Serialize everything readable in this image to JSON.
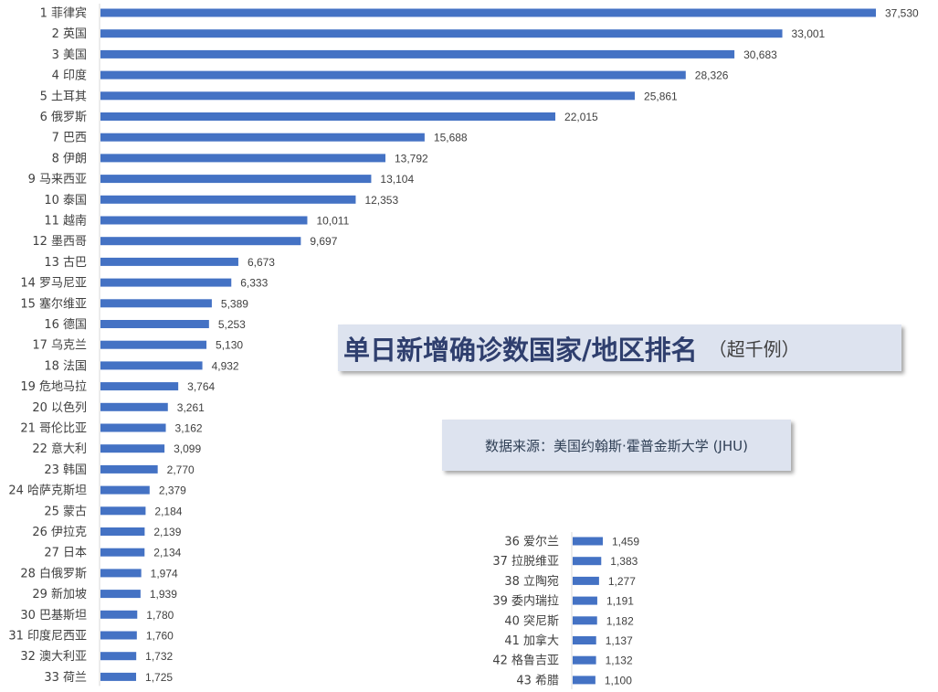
{
  "chart_data": {
    "type": "bar",
    "orientation": "horizontal",
    "title": "单日新增确诊数国家/地区排名",
    "subtitle": "（超千例）",
    "source": "数据来源：美国约翰斯·霍普金斯大学 (JHU)",
    "bar_color": "#4472c4",
    "groups": [
      {
        "items": [
          {
            "rank": "1",
            "name": "菲律宾",
            "value": 37530,
            "label": "37,530"
          },
          {
            "rank": "2",
            "name": "英国",
            "value": 33001,
            "label": "33,001"
          },
          {
            "rank": "3",
            "name": "美国",
            "value": 30683,
            "label": "30,683"
          },
          {
            "rank": "4",
            "name": "印度",
            "value": 28326,
            "label": "28,326"
          },
          {
            "rank": "5",
            "name": "土耳其",
            "value": 25861,
            "label": "25,861"
          },
          {
            "rank": "6",
            "name": "俄罗斯",
            "value": 22015,
            "label": "22,015"
          },
          {
            "rank": "7",
            "name": "巴西",
            "value": 15688,
            "label": "15,688"
          },
          {
            "rank": "8",
            "name": "伊朗",
            "value": 13792,
            "label": "13,792"
          },
          {
            "rank": "9",
            "name": "马来西亚",
            "value": 13104,
            "label": "13,104"
          },
          {
            "rank": "10",
            "name": "泰国",
            "value": 12353,
            "label": "12,353"
          },
          {
            "rank": "11",
            "name": "越南",
            "value": 10011,
            "label": "10,011"
          },
          {
            "rank": "12",
            "name": "墨西哥",
            "value": 9697,
            "label": "9,697"
          },
          {
            "rank": "13",
            "name": "古巴",
            "value": 6673,
            "label": "6,673"
          },
          {
            "rank": "14",
            "name": "罗马尼亚",
            "value": 6333,
            "label": "6,333"
          },
          {
            "rank": "15",
            "name": "塞尔维亚",
            "value": 5389,
            "label": "5,389"
          },
          {
            "rank": "16",
            "name": "德国",
            "value": 5253,
            "label": "5,253"
          },
          {
            "rank": "17",
            "name": "乌克兰",
            "value": 5130,
            "label": "5,130"
          },
          {
            "rank": "18",
            "name": "法国",
            "value": 4932,
            "label": "4,932"
          },
          {
            "rank": "19",
            "name": "危地马拉",
            "value": 3764,
            "label": "3,764"
          },
          {
            "rank": "20",
            "name": "以色列",
            "value": 3261,
            "label": "3,261"
          },
          {
            "rank": "21",
            "name": "哥伦比亚",
            "value": 3162,
            "label": "3,162"
          },
          {
            "rank": "22",
            "name": "意大利",
            "value": 3099,
            "label": "3,099"
          },
          {
            "rank": "23",
            "name": "韩国",
            "value": 2770,
            "label": "2,770"
          },
          {
            "rank": "24",
            "name": "哈萨克斯坦",
            "value": 2379,
            "label": "2,379"
          },
          {
            "rank": "25",
            "name": "蒙古",
            "value": 2184,
            "label": "2,184"
          },
          {
            "rank": "26",
            "name": "伊拉克",
            "value": 2139,
            "label": "2,139"
          },
          {
            "rank": "27",
            "name": "日本",
            "value": 2134,
            "label": "2,134"
          },
          {
            "rank": "28",
            "name": "白俄罗斯",
            "value": 1974,
            "label": "1,974"
          },
          {
            "rank": "29",
            "name": "新加坡",
            "value": 1939,
            "label": "1,939"
          },
          {
            "rank": "30",
            "name": "巴基斯坦",
            "value": 1780,
            "label": "1,780"
          },
          {
            "rank": "31",
            "name": "印度尼西亚",
            "value": 1760,
            "label": "1,760"
          },
          {
            "rank": "32",
            "name": "澳大利亚",
            "value": 1732,
            "label": "1,732"
          },
          {
            "rank": "33",
            "name": "荷兰",
            "value": 1725,
            "label": "1,725"
          }
        ]
      },
      {
        "items": [
          {
            "rank": "36",
            "name": "爱尔兰",
            "value": 1459,
            "label": "1,459"
          },
          {
            "rank": "37",
            "name": "拉脱维亚",
            "value": 1383,
            "label": "1,383"
          },
          {
            "rank": "38",
            "name": "立陶宛",
            "value": 1277,
            "label": "1,277"
          },
          {
            "rank": "39",
            "name": "委内瑞拉",
            "value": 1191,
            "label": "1,191"
          },
          {
            "rank": "40",
            "name": "突尼斯",
            "value": 1182,
            "label": "1,182"
          },
          {
            "rank": "41",
            "name": "加拿大",
            "value": 1137,
            "label": "1,137"
          },
          {
            "rank": "42",
            "name": "格鲁吉亚",
            "value": 1132,
            "label": "1,132"
          },
          {
            "rank": "43",
            "name": "希腊",
            "value": 1100,
            "label": "1,100"
          }
        ]
      }
    ]
  }
}
